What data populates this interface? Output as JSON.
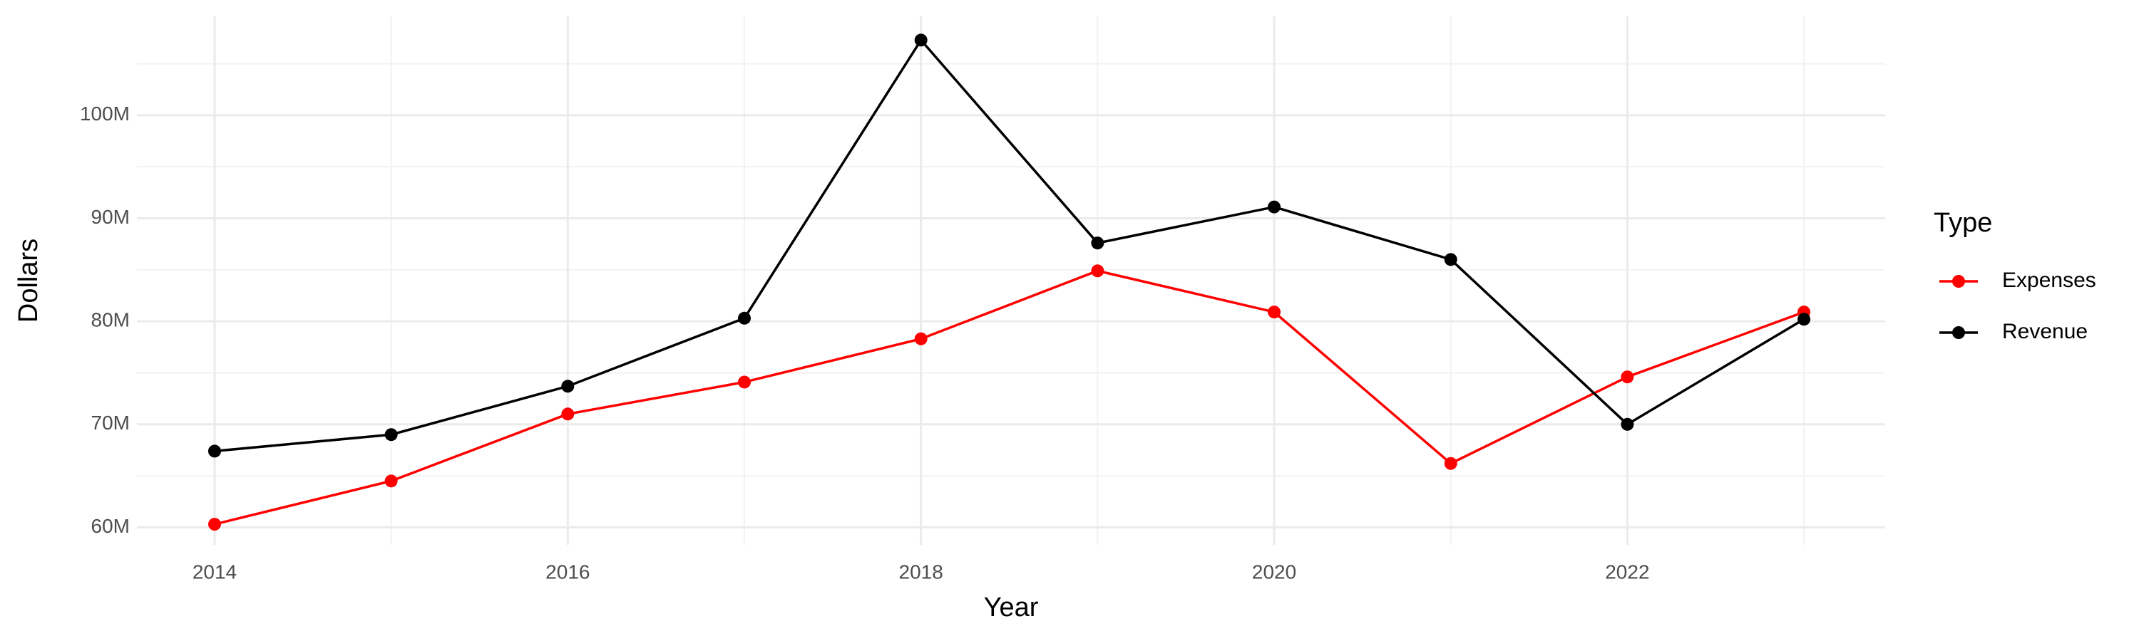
{
  "chart_data": {
    "type": "line",
    "x_label": "Year",
    "y_label": "Dollars",
    "legend_title": "Type",
    "x": [
      2014,
      2015,
      2016,
      2017,
      2018,
      2019,
      2020,
      2021,
      2022,
      2023
    ],
    "series": [
      {
        "name": "Expenses",
        "color": "#ff0000",
        "values": [
          60300000,
          64500000,
          71000000,
          74100000,
          78300000,
          84900000,
          80900000,
          66200000,
          74600000,
          80900000
        ]
      },
      {
        "name": "Revenue",
        "color": "#000000",
        "values": [
          67400000,
          69000000,
          73700000,
          80300000,
          107300000,
          87600000,
          91100000,
          86000000,
          70000000,
          80200000
        ]
      }
    ],
    "xlim": [
      2013.56,
      2023.46
    ],
    "xticks": [
      2014,
      2016,
      2018,
      2020,
      2022
    ],
    "ylim": [
      58300000,
      109600000
    ],
    "yticks": [
      {
        "value": 60000000,
        "label": "60M"
      },
      {
        "value": 70000000,
        "label": "70M"
      },
      {
        "value": 80000000,
        "label": "80M"
      },
      {
        "value": 90000000,
        "label": "90M"
      },
      {
        "value": 100000000,
        "label": "100M"
      }
    ],
    "grid": true,
    "legend": "right"
  }
}
